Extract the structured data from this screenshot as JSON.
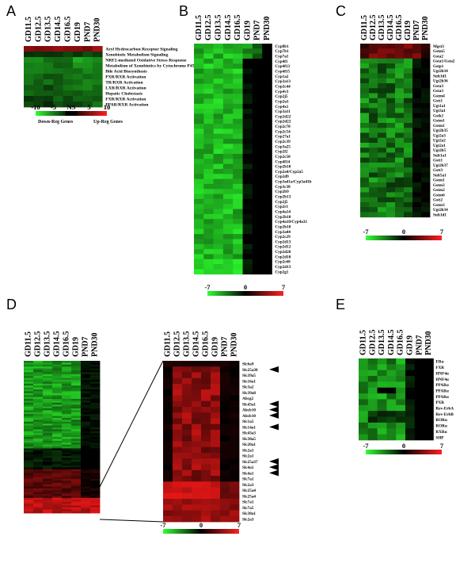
{
  "columns": [
    "GD11.5",
    "GD12.5",
    "GD13.5",
    "GD14.5",
    "GD16.5",
    "GD19",
    "PND7",
    "PND30"
  ],
  "panels": {
    "A": {
      "letter": "A",
      "rows": [
        "Aryl Hydrocarbon Receptor Signaling",
        "Xenobiotic Metabolism Signaling",
        "NRF2-mediated Oxidative Stress Response",
        "Metabolism of Xenobiotics by Cytochrome P450",
        "Bile Acid Biosynthesis",
        "PXR/RXR Activation",
        "TR/RXR Activation",
        "LXR/RXR Activation",
        "Hepatic Cholestasis",
        "FXR/RXR Activation",
        "PPAR/RXR Activation"
      ],
      "scale": {
        "ticks": [
          "-10",
          "-5",
          "NS",
          "5",
          "10"
        ],
        "down_label": "Down-Reg Genes",
        "up_label": "Up-Reg Genes",
        "min": -10,
        "max": 10
      }
    },
    "B": {
      "letter": "B",
      "rows": [
        "Cyp8b1",
        "Cyp7b1",
        "Cyp7a1",
        "Cyp4f1",
        "Cyp4f13",
        "Cyp4f15",
        "Cyp1a2",
        "Cyp3a13",
        "Cyp2c44",
        "Cyp4v3",
        "Cyp2j5",
        "Cyp2u1",
        "Cyp4x1",
        "Cyp3a11",
        "Cyp2d22",
        "Cyp2d22",
        "Cyp2c70",
        "Cyp2c54",
        "Cyp27a1",
        "Cyp2c39",
        "Cyp3a25",
        "Cyp2f2",
        "Cyp2c50",
        "Cyp4f14",
        "Cyp2b10",
        "Cyp2a4/Cyp2a5",
        "Cyp2d9",
        "Cyp3a41a/Cyp3a41b",
        "Cyp3c38",
        "Cyp2b9",
        "Cyp2b13",
        "Cyp2j5",
        "Cyp2r1",
        "Cyp4a14",
        "Cyp2b10",
        "Cyp4a10/Cyp4a31",
        "Cyp2b10",
        "Cyp3a44",
        "Cyp2c29",
        "Cyp2d13",
        "Cyp2d12",
        "Cyp2d26",
        "Cyp2d10",
        "Cyp2c68",
        "Cyp2d13",
        "Cyp2g1"
      ],
      "scale": {
        "ticks": [
          "-7",
          "0",
          "7"
        ],
        "min": -7,
        "max": 7
      }
    },
    "C": {
      "letter": "C",
      "rows": [
        "Mgst3",
        "Gstm5",
        "Gsta2",
        "Gsta1/Gsta2",
        "Gstp1",
        "Ugt2b34",
        "Sult1d1",
        "Ugt2b36",
        "Gsta3",
        "Gsta3",
        "Gstm4",
        "Gstt1",
        "Ugt1a1",
        "Ugt3a1",
        "Gstk1",
        "Gstm1",
        "Gstm1",
        "Ugt2b35",
        "Ugt2a3",
        "Ugt2a2",
        "Ugt2a1",
        "Ugt2b5",
        "Sult1a1",
        "Gstt1",
        "Ugt2b37",
        "Gstt3",
        "Sult5a1",
        "Gstm1",
        "Gstm3",
        "Gstm2",
        "Gstm6",
        "Gstt2",
        "Gstm3",
        "Ugt2b34",
        "Sult1d1"
      ],
      "scale": {
        "ticks": [
          "-7",
          "0",
          "7"
        ],
        "min": -7,
        "max": 7
      }
    },
    "D": {
      "letter": "D",
      "zoom_rows": [
        "Slc6a9",
        "Slc25a38",
        "Slc39a5",
        "Slc16a1",
        "Slc3a2",
        "Slc39a8",
        "Abcg2",
        "Slc43a1",
        "Abcb10",
        "Abcb10",
        "Slc1a5",
        "Slc14a1",
        "Slc43a3",
        "Slc38a5",
        "Slc20a1",
        "Slc2a1",
        "Slc2a1",
        "Slc25a37",
        "Slc4a1",
        "Slc4a1",
        "Slc7a1",
        "Slc2a3",
        "Slc25a4",
        "Slc25a4",
        "Slc7a1",
        "Slc7a5",
        "Slc38a1",
        "Slc2a3"
      ],
      "arrow_rows": [
        1,
        7,
        8,
        9,
        11,
        17,
        18,
        19
      ],
      "scale": {
        "ticks": [
          "-7",
          "0",
          "7"
        ],
        "min": -7,
        "max": 7
      }
    },
    "E": {
      "letter": "E",
      "rows": [
        "ERα",
        "FXR",
        "HNF4α",
        "HNF4α",
        "PPARα",
        "PPARα",
        "PPARα",
        "PXR",
        "Rev-ErbA",
        "Rev-ErbB",
        "RORα",
        "RORα",
        "RXRα",
        "SHP"
      ],
      "scale": {
        "ticks": [
          "-7",
          "0",
          "7"
        ],
        "min": -7,
        "max": 7
      }
    }
  },
  "colors": {
    "down": "#33ff33",
    "neutral": "#000000",
    "up": "#ff2020"
  }
}
